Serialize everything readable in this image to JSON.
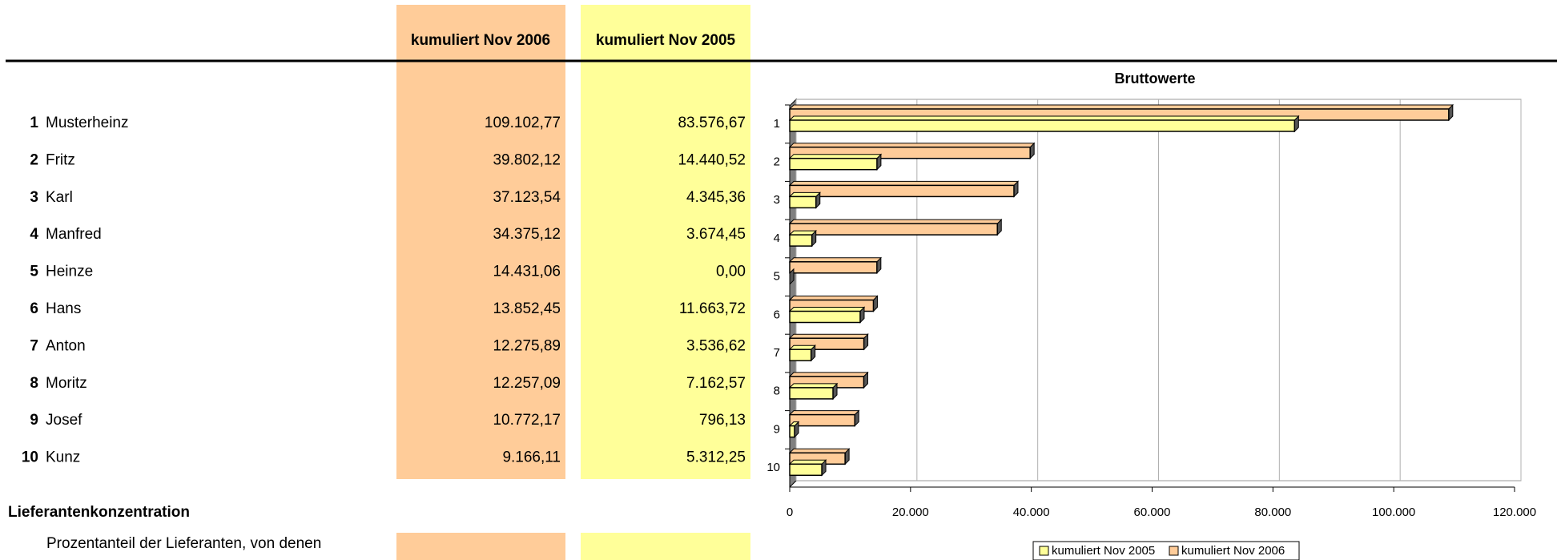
{
  "table": {
    "headers": [
      "kumuliert Nov 2006",
      "kumuliert Nov 2005"
    ],
    "rows": [
      {
        "rank": 1,
        "name": "Musterheinz"
      },
      {
        "rank": 2,
        "name": "Fritz"
      },
      {
        "rank": 3,
        "name": "Karl"
      },
      {
        "rank": 4,
        "name": "Manfred"
      },
      {
        "rank": 5,
        "name": "Heinze"
      },
      {
        "rank": 6,
        "name": "Hans"
      },
      {
        "rank": 7,
        "name": "Anton"
      },
      {
        "rank": 8,
        "name": "Moritz"
      },
      {
        "rank": 9,
        "name": "Josef"
      },
      {
        "rank": 10,
        "name": "Kunz"
      }
    ]
  },
  "section": {
    "title": "Lieferantenkonzentration",
    "text": "Prozentanteil der Lieferanten, von denen"
  },
  "chart_data": {
    "type": "bar",
    "orientation": "horizontal",
    "title": "Bruttowerte",
    "categories": [
      "1",
      "2",
      "3",
      "4",
      "5",
      "6",
      "7",
      "8",
      "9",
      "10"
    ],
    "series": [
      {
        "name": "kumuliert Nov 2005",
        "color": "#ffff99",
        "values": [
          83576.67,
          14440.52,
          4345.36,
          3674.45,
          0,
          11663.72,
          3536.62,
          7162.57,
          796.13,
          5312.25
        ],
        "value_labels": [
          "83.576,67",
          "14.440,52",
          "4.345,36",
          "3.674,45",
          "0,00",
          "11.663,72",
          "3.536,62",
          "7.162,57",
          "796,13",
          "5.312,25"
        ]
      },
      {
        "name": "kumuliert Nov 2006",
        "color": "#ffcc99",
        "values": [
          109102.77,
          39802.12,
          37123.54,
          34375.12,
          14431.06,
          13852.45,
          12275.89,
          12257.09,
          10772.17,
          9166.11
        ],
        "value_labels": [
          "109.102,77",
          "39.802,12",
          "37.123,54",
          "34.375,12",
          "14.431,06",
          "13.852,45",
          "12.275,89",
          "12.257,09",
          "10.772,17",
          "9.166,11"
        ]
      }
    ],
    "xlim": [
      0,
      120000
    ],
    "xticks": [
      0,
      {
        "value": 20000,
        "label": "20.000"
      },
      {
        "value": 40000,
        "label": "40.000"
      },
      {
        "value": 60000,
        "label": "60.000"
      },
      {
        "value": 80000,
        "label": "80.000"
      },
      {
        "value": 100000,
        "label": "100.000"
      },
      {
        "value": 120000,
        "label": "120.000"
      }
    ],
    "grid": true,
    "legend": "bottom"
  }
}
